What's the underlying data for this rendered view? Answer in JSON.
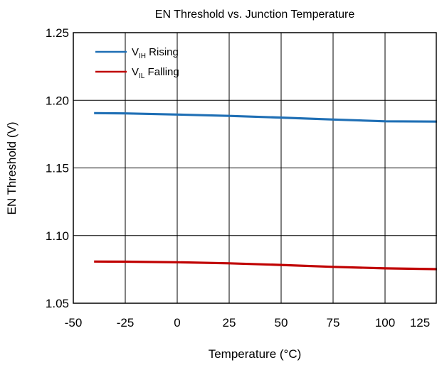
{
  "chart_data": {
    "type": "line",
    "title": "EN Threshold vs. Junction Temperature",
    "xlabel": "Temperature (°C)",
    "ylabel": "EN Threshold (V)",
    "xlim": [
      -50,
      125
    ],
    "ylim": [
      1.05,
      1.25
    ],
    "xticks": [
      "-50",
      "-25",
      "0",
      "25",
      "50",
      "75",
      "100",
      "125"
    ],
    "yticks": [
      "1.05",
      "1.10",
      "1.15",
      "1.20",
      "1.25"
    ],
    "grid": true,
    "legend_position": "top-left",
    "series": [
      {
        "name": "VIH Rising",
        "legend_main": "V",
        "legend_sub": "IH",
        "legend_rest": " Rising",
        "color": "#1f6fb5",
        "x": [
          -40,
          -25,
          0,
          25,
          50,
          75,
          100,
          125
        ],
        "y": [
          1.1905,
          1.1903,
          1.1895,
          1.1885,
          1.1872,
          1.1858,
          1.1845,
          1.1843
        ]
      },
      {
        "name": "VIL Falling",
        "legend_main": "V",
        "legend_sub": "IL",
        "legend_rest": " Falling",
        "color": "#c00000",
        "x": [
          -40,
          -25,
          0,
          25,
          50,
          75,
          100,
          125
        ],
        "y": [
          1.0808,
          1.0807,
          1.0803,
          1.0795,
          1.0783,
          1.0769,
          1.0758,
          1.0752
        ]
      }
    ]
  }
}
